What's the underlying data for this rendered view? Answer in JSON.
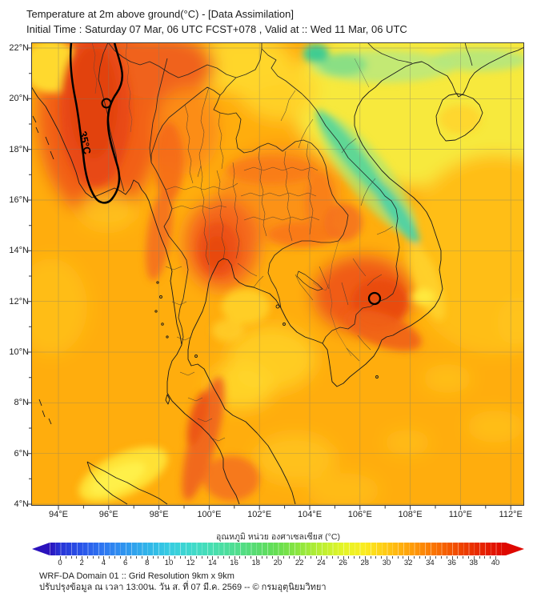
{
  "title": {
    "line1": "Temperature at 2m above ground(°C) - [Data Assimilation]",
    "line2": "Initial Time : Saturday 07 Mar, 06 UTC FCST+078 , Valid at :: Wed 11 Mar, 06 UTC"
  },
  "map": {
    "contour_label": "35°C",
    "lat_labels": [
      "22°N",
      "20°N",
      "18°N",
      "16°N",
      "14°N",
      "12°N",
      "10°N",
      "8°N",
      "6°N",
      "4°N"
    ],
    "lon_labels": [
      "94°E",
      "96°E",
      "98°E",
      "100°E",
      "102°E",
      "104°E",
      "106°E",
      "108°E",
      "110°E",
      "112°E"
    ]
  },
  "colorbar": {
    "label_thai": "อุณหภูมิ หน่วย องศาเซลเซียส (°C)",
    "tick_labels": [
      "0",
      "2",
      "4",
      "6",
      "8",
      "10",
      "12",
      "14",
      "16",
      "18",
      "20",
      "22",
      "24",
      "26",
      "28",
      "30",
      "32",
      "34",
      "36",
      "38",
      "40"
    ],
    "left_end_color": "#2B12BC",
    "right_end_color": "#DE0800",
    "gradient_stops": [
      {
        "v": 0,
        "c": "#2733D6"
      },
      {
        "v": 2,
        "c": "#2A55E9"
      },
      {
        "v": 4,
        "c": "#2E78F1"
      },
      {
        "v": 6,
        "c": "#2F96EF"
      },
      {
        "v": 8,
        "c": "#30B4E9"
      },
      {
        "v": 10,
        "c": "#36CCE2"
      },
      {
        "v": 12,
        "c": "#3FD9CD"
      },
      {
        "v": 14,
        "c": "#47DFB1"
      },
      {
        "v": 16,
        "c": "#4FDE92"
      },
      {
        "v": 18,
        "c": "#57DC70"
      },
      {
        "v": 20,
        "c": "#66DE50"
      },
      {
        "v": 22,
        "c": "#8EE63E"
      },
      {
        "v": 24,
        "c": "#BBEF32"
      },
      {
        "v": 26,
        "c": "#E4F528"
      },
      {
        "v": 28,
        "c": "#FBEC20"
      },
      {
        "v": 30,
        "c": "#FFC914"
      },
      {
        "v": 32,
        "c": "#FFA30A"
      },
      {
        "v": 34,
        "c": "#FB7B04"
      },
      {
        "v": 36,
        "c": "#F35402"
      },
      {
        "v": 38,
        "c": "#E92E00"
      },
      {
        "v": 40,
        "c": "#E21200"
      }
    ]
  },
  "footer": {
    "line1": "WRF-DA Domain 01 :: Grid Resolution 9km x 9km",
    "line2": "ปรับปรุงข้อมูล ณ เวลา 13:00น. วัน ส. ที่ 07 มี.ค. 2569 -- © กรมอุตุนิยมวิทยา"
  }
}
